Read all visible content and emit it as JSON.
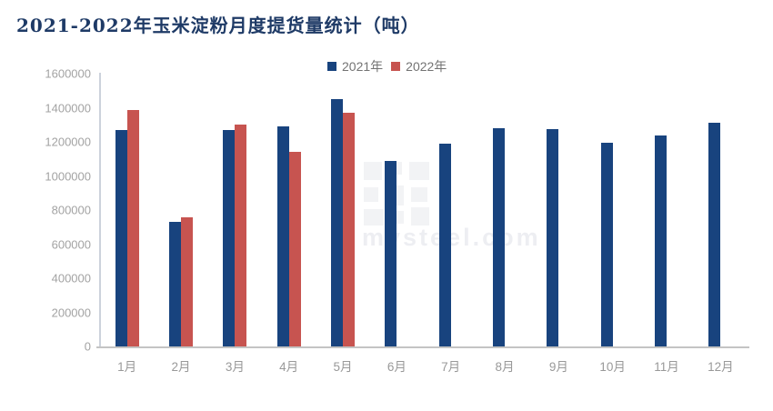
{
  "page": {
    "title": "2021-2022年玉米淀粉月度提货量统计（吨）"
  },
  "legend": {
    "items": [
      {
        "label": "2021年",
        "color": "#18437e"
      },
      {
        "label": "2022年",
        "color": "#c75450"
      }
    ]
  },
  "watermark": {
    "text": "mysteel.com"
  },
  "chart_data": {
    "type": "bar",
    "title": "2021-2022年玉米淀粉月度提货量统计（吨）",
    "categories": [
      "1月",
      "2月",
      "3月",
      "4月",
      "5月",
      "6月",
      "7月",
      "8月",
      "9月",
      "10月",
      "11月",
      "12月"
    ],
    "series": [
      {
        "name": "2021年",
        "color": "#18437e",
        "values": [
          1270000,
          730000,
          1270000,
          1290000,
          1450000,
          1090000,
          1190000,
          1280000,
          1275000,
          1195000,
          1235000,
          1310000
        ]
      },
      {
        "name": "2022年",
        "color": "#c75450",
        "values": [
          1385000,
          760000,
          1300000,
          1140000,
          1370000,
          null,
          null,
          null,
          null,
          null,
          null,
          null
        ]
      }
    ],
    "xlabel": "",
    "ylabel": "",
    "ylim": [
      0,
      1600000
    ],
    "ytick_step": 200000,
    "ytick_labels": [
      "0",
      "200000",
      "400000",
      "600000",
      "800000",
      "1000000",
      "1200000",
      "1400000",
      "1600000"
    ],
    "grid": false,
    "legend_position": "top-center"
  }
}
